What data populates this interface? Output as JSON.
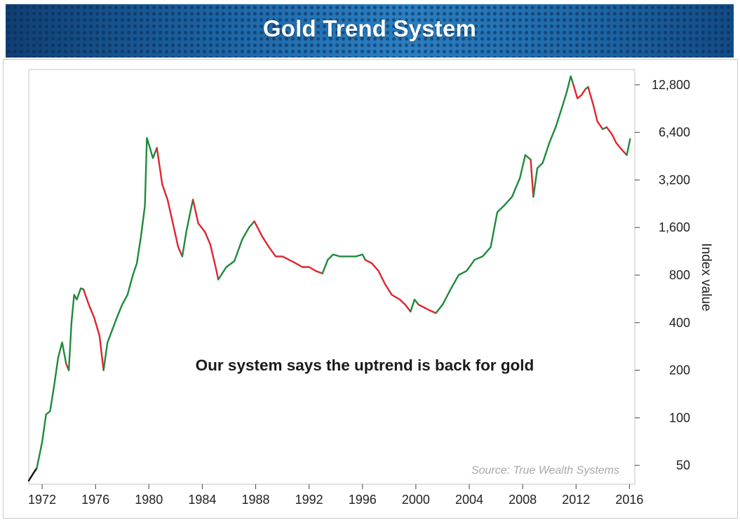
{
  "chart_data": {
    "type": "line",
    "title": "Gold Trend System",
    "annotation": "Our system says the uptrend is back for gold",
    "source": "Source: True Wealth Systems",
    "ylabel": "Index value",
    "yscale": "log",
    "ylim": [
      38,
      16000
    ],
    "xlim": [
      1971.0,
      2016.4
    ],
    "x_ticks": [
      1972,
      1976,
      1980,
      1984,
      1988,
      1992,
      1996,
      2000,
      2004,
      2008,
      2012,
      2016
    ],
    "y_ticks": [
      50,
      100,
      200,
      400,
      800,
      1600,
      3200,
      6400,
      12800
    ],
    "y_tick_labels": [
      "50",
      "100",
      "200",
      "400",
      "800",
      "1,600",
      "3,200",
      "6,400",
      "12,800"
    ],
    "colors": {
      "uptrend": "#1e8a3c",
      "downtrend": "#e0242f",
      "initial": "#111111",
      "axis": "#444444"
    },
    "series": [
      {
        "trend_signal_segments": [
          {
            "signal": "initial",
            "x": [
              1971.0,
              1971.3,
              1971.6
            ],
            "y": [
              40,
              44,
              48
            ]
          },
          {
            "signal": "uptrend",
            "x": [
              1971.6,
              1972.0,
              1972.3,
              1972.6,
              1972.9,
              1973.2,
              1973.5,
              1973.8
            ],
            "y": [
              48,
              70,
              105,
              110,
              160,
              240,
              300,
              220
            ]
          },
          {
            "signal": "downtrend",
            "x": [
              1973.8,
              1974.0
            ],
            "y": [
              220,
              200
            ]
          },
          {
            "signal": "uptrend",
            "x": [
              1974.0,
              1974.2,
              1974.4,
              1974.6,
              1974.9,
              1975.1
            ],
            "y": [
              200,
              400,
              600,
              560,
              660,
              650
            ]
          },
          {
            "signal": "downtrend",
            "x": [
              1975.1,
              1975.5,
              1975.9,
              1976.3,
              1976.6
            ],
            "y": [
              650,
              520,
              430,
              330,
              200
            ]
          },
          {
            "signal": "uptrend",
            "x": [
              1976.6,
              1976.9,
              1977.2,
              1977.6,
              1978.0,
              1978.4,
              1978.8,
              1979.1,
              1979.4,
              1979.7,
              1979.85,
              1980.05,
              1980.3,
              1980.6
            ],
            "y": [
              200,
              300,
              350,
              430,
              520,
              600,
              800,
              950,
              1400,
              2200,
              5900,
              5200,
              4400,
              5100
            ]
          },
          {
            "signal": "downtrend",
            "x": [
              1980.6,
              1981.0,
              1981.4,
              1981.8,
              1982.2,
              1982.5
            ],
            "y": [
              5100,
              3000,
              2400,
              1700,
              1200,
              1050
            ]
          },
          {
            "signal": "uptrend",
            "x": [
              1982.5,
              1982.8,
              1983.1,
              1983.3
            ],
            "y": [
              1050,
              1500,
              2000,
              2400
            ]
          },
          {
            "signal": "downtrend",
            "x": [
              1983.3,
              1983.7,
              1984.2,
              1984.6,
              1985.0,
              1985.2
            ],
            "y": [
              2400,
              1700,
              1500,
              1250,
              900,
              750
            ]
          },
          {
            "signal": "uptrend",
            "x": [
              1985.2,
              1985.8,
              1986.4,
              1987.0,
              1987.5,
              1987.9
            ],
            "y": [
              750,
              900,
              980,
              1350,
              1600,
              1750
            ]
          },
          {
            "signal": "downtrend",
            "x": [
              1987.9,
              1988.5,
              1989.0,
              1989.5,
              1990.0,
              1990.5,
              1991.0,
              1991.5,
              1992.0,
              1992.5,
              1993.0
            ],
            "y": [
              1750,
              1400,
              1200,
              1050,
              1050,
              1000,
              950,
              900,
              900,
              850,
              820
            ]
          },
          {
            "signal": "uptrend",
            "x": [
              1993.0,
              1993.4,
              1993.8,
              1994.3,
              1994.9,
              1995.5,
              1996.0,
              1996.2
            ],
            "y": [
              820,
              1000,
              1080,
              1050,
              1050,
              1050,
              1080,
              1000
            ]
          },
          {
            "signal": "downtrend",
            "x": [
              1996.2,
              1996.7,
              1997.2,
              1997.7,
              1998.2,
              1998.8,
              1999.2,
              1999.6
            ],
            "y": [
              1000,
              950,
              850,
              700,
              600,
              560,
              520,
              470
            ]
          },
          {
            "signal": "uptrend",
            "x": [
              1999.6,
              1999.9,
              2000.2
            ],
            "y": [
              470,
              560,
              520
            ]
          },
          {
            "signal": "downtrend",
            "x": [
              2000.2,
              2000.6,
              2001.0,
              2001.5
            ],
            "y": [
              520,
              500,
              480,
              460
            ]
          },
          {
            "signal": "uptrend",
            "x": [
              2001.5,
              2002.0,
              2002.6,
              2003.2,
              2003.8,
              2004.4,
              2005.0,
              2005.6,
              2006.1,
              2006.6,
              2007.2,
              2007.8,
              2008.2,
              2008.6
            ],
            "y": [
              460,
              520,
              650,
              800,
              850,
              1000,
              1050,
              1200,
              2000,
              2200,
              2500,
              3300,
              4600,
              4300
            ]
          },
          {
            "signal": "downtrend",
            "x": [
              2008.6,
              2008.8
            ],
            "y": [
              4300,
              2500
            ]
          },
          {
            "signal": "uptrend",
            "x": [
              2008.8,
              2009.1,
              2009.5,
              2010.0,
              2010.5,
              2011.0,
              2011.3,
              2011.6,
              2011.8
            ],
            "y": [
              2500,
              3800,
              4100,
              5500,
              7000,
              9500,
              11500,
              14500,
              12800
            ]
          },
          {
            "signal": "downtrend",
            "x": [
              2011.8,
              2012.1,
              2012.4,
              2012.7
            ],
            "y": [
              12800,
              10500,
              11000,
              12000
            ]
          },
          {
            "signal": "uptrend",
            "x": [
              2012.7,
              2012.9
            ],
            "y": [
              12000,
              12400
            ]
          },
          {
            "signal": "downtrend",
            "x": [
              2012.9,
              2013.3,
              2013.6,
              2014.0
            ],
            "y": [
              12400,
              9500,
              7500,
              6700
            ]
          },
          {
            "signal": "uptrend",
            "x": [
              2014.0,
              2014.3
            ],
            "y": [
              6700,
              6900
            ]
          },
          {
            "signal": "downtrend",
            "x": [
              2014.3,
              2014.7,
              2015.0,
              2015.4,
              2015.8
            ],
            "y": [
              6900,
              6200,
              5500,
              5000,
              4600
            ]
          },
          {
            "signal": "uptrend",
            "x": [
              2015.8,
              2016.05
            ],
            "y": [
              4600,
              5800
            ]
          }
        ]
      }
    ]
  }
}
